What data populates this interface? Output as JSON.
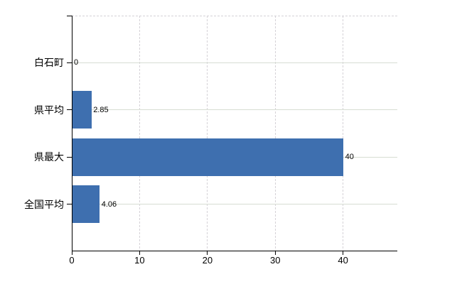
{
  "chart_data": {
    "type": "bar",
    "orientation": "horizontal",
    "title": "",
    "xlabel": "",
    "ylabel": "",
    "categories": [
      "白石町",
      "県平均",
      "県最大",
      "全国平均"
    ],
    "values": [
      0,
      2.85,
      40,
      4.06
    ],
    "value_labels": [
      "0",
      "2.85",
      "40",
      "4.06"
    ],
    "x_ticks": [
      0,
      10,
      20,
      30,
      40
    ],
    "x_tick_labels": [
      "0",
      "10",
      "20",
      "30",
      "40"
    ],
    "xlim": [
      0,
      48
    ],
    "legend": "none",
    "grid": {
      "vertical": "dashed at each x tick",
      "horizontal": "solid at each category center",
      "top_border": "dashed"
    },
    "colors": {
      "bar": "#3E6FAF",
      "axis": "#000000",
      "h_gridline": "#D7DDD3",
      "v_gridline": "#D5D2D7",
      "text": "#000000",
      "background": "#FFFFFF"
    }
  }
}
